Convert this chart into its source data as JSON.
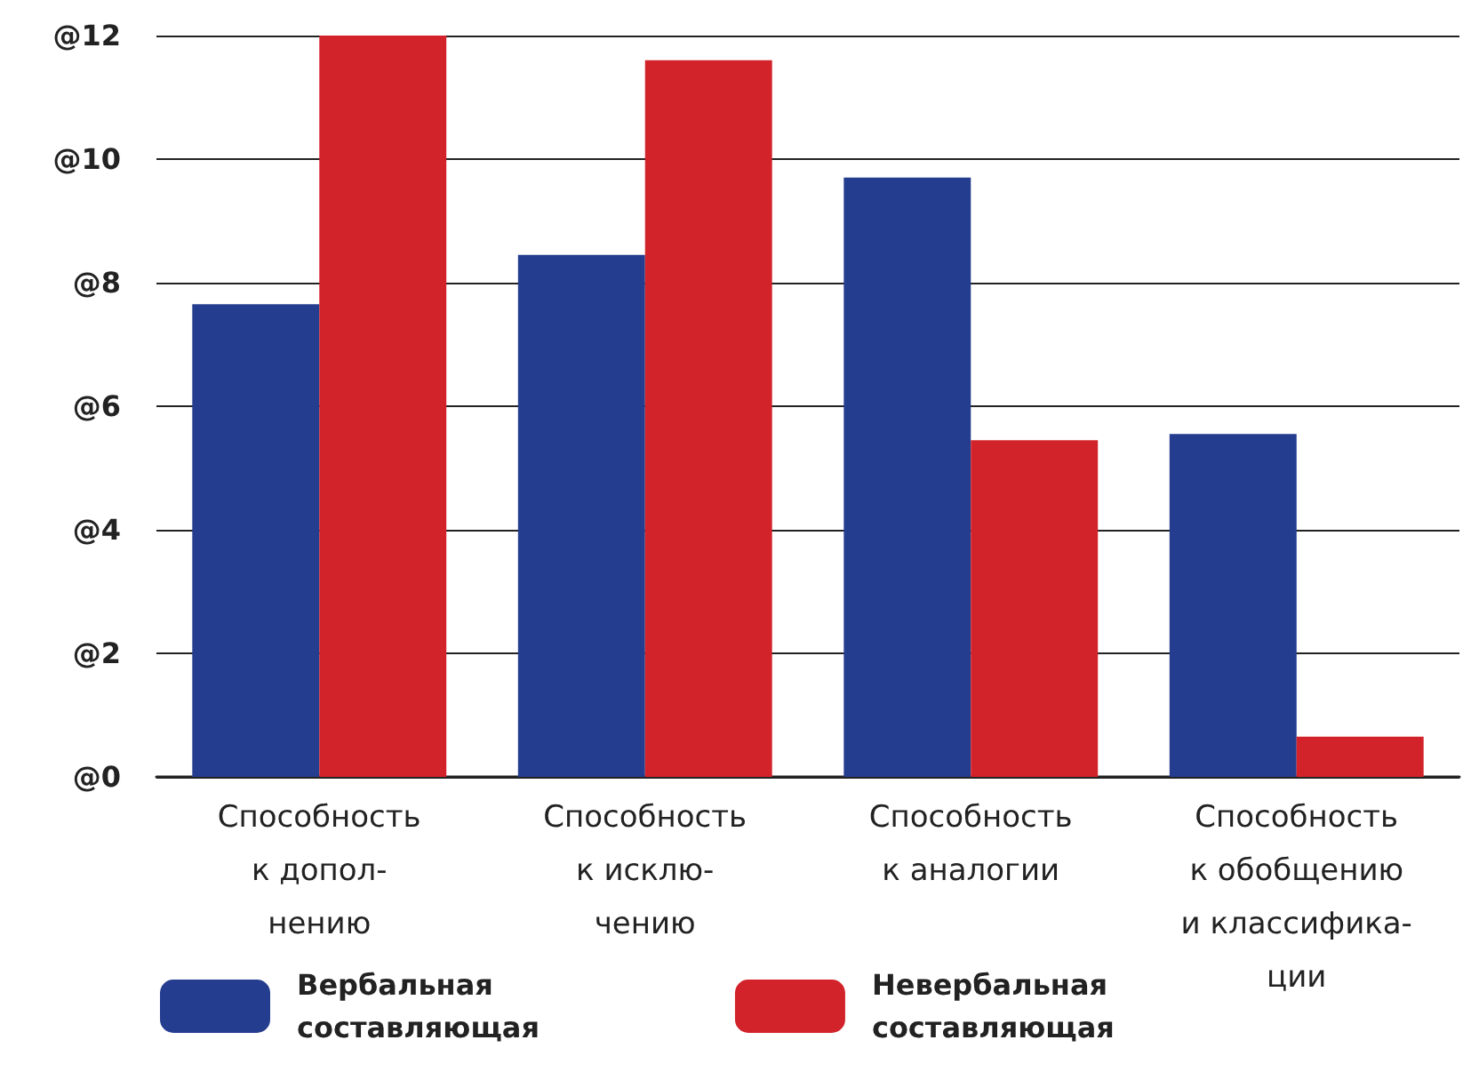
{
  "chart_data": {
    "type": "bar",
    "categories": [
      "Способность\nк допол-\nнению",
      "Способность\nк исклю-\nчению",
      "Способность\nк аналогии",
      "Способность\nк обобщению\nи классифика-\nции"
    ],
    "series": [
      {
        "name": "Вербальная\nсоставляющая",
        "color": "#253d8f",
        "values": [
          7.65,
          8.45,
          9.7,
          5.55
        ]
      },
      {
        "name": "Невербальная\nсоставляющая",
        "color": "#d2232a",
        "values": [
          12,
          11.6,
          5.45,
          0.65
        ]
      }
    ],
    "ylim": [
      0,
      12
    ],
    "yticks": [
      {
        "value": 0,
        "label": "@0"
      },
      {
        "value": 2,
        "label": "@2"
      },
      {
        "value": 4,
        "label": "@4"
      },
      {
        "value": 6,
        "label": "@6"
      },
      {
        "value": 8,
        "label": "@8"
      },
      {
        "value": 10,
        "label": "@10"
      },
      {
        "value": 12,
        "label": "@12"
      }
    ],
    "grid": "y",
    "legend": "bottom"
  }
}
